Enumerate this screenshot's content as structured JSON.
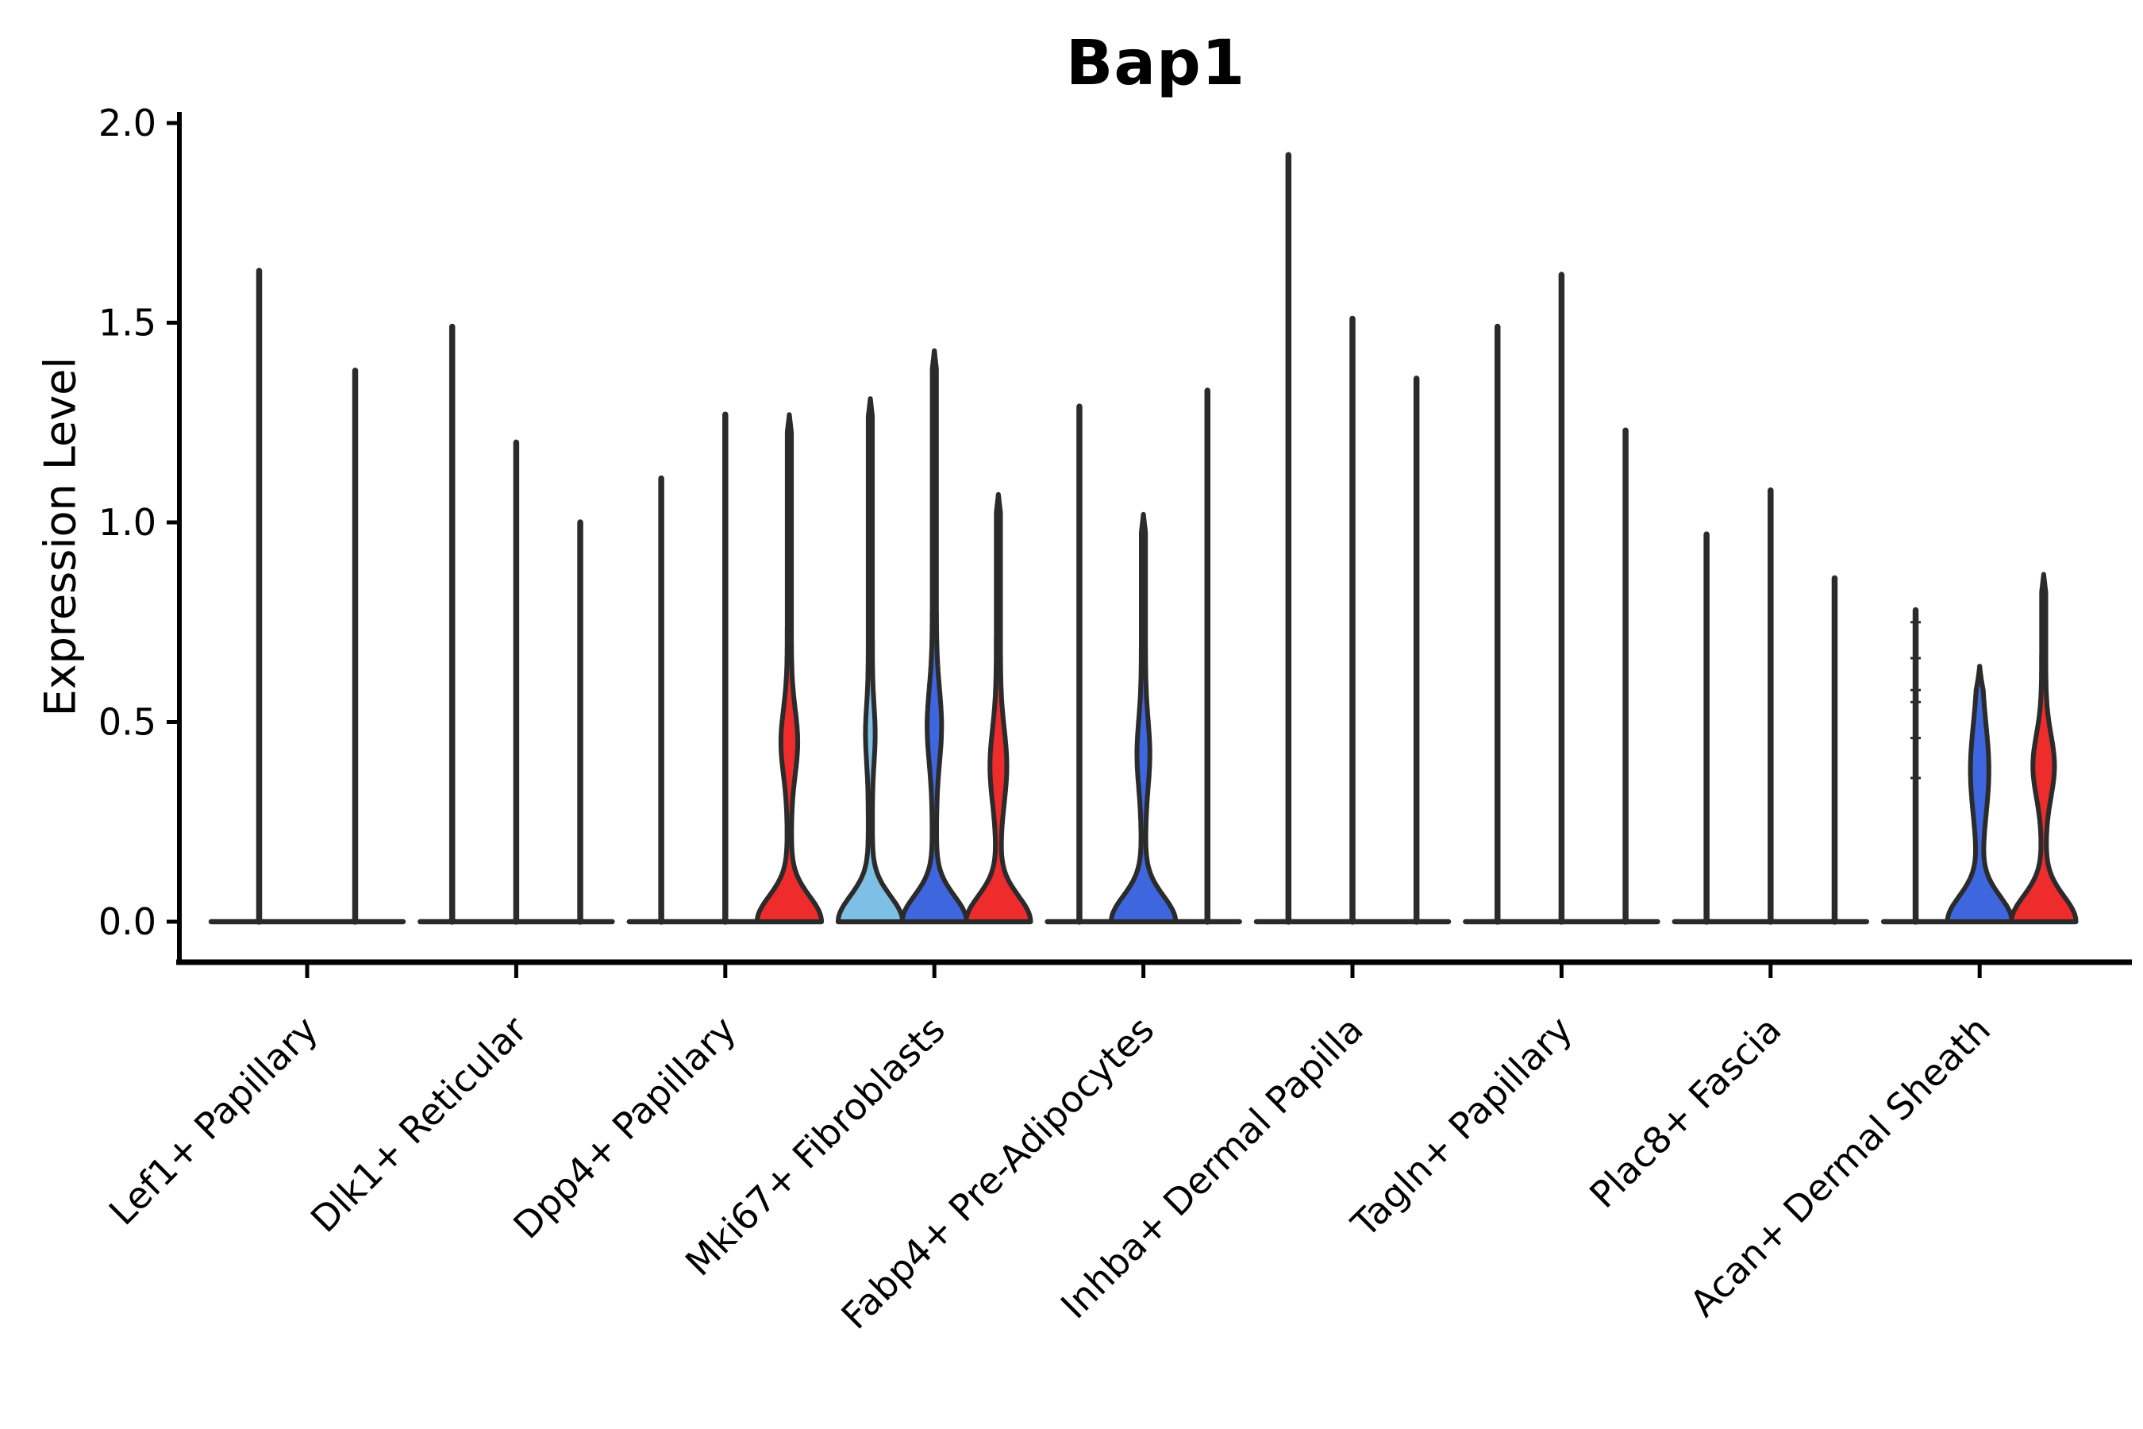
{
  "figure": {
    "title": "Bap1",
    "ylabel": "Expression Level"
  },
  "chart_data": {
    "type": "violin",
    "title": "Bap1",
    "xlabel": "",
    "ylabel": "Expression Level",
    "ylim": [
      0.0,
      2.0
    ],
    "yticks": [
      0.0,
      0.5,
      1.0,
      1.5,
      2.0
    ],
    "ytick_labels": [
      "0.0",
      "0.5",
      "1.0",
      "1.5",
      "2.0"
    ],
    "grid": false,
    "legend": "none",
    "palette": {
      "lightblue": "#7EC0E5",
      "blue": "#3E66DE",
      "red": "#EE2C2C",
      "outline": "#2B2B2B",
      "axis": "#000000"
    },
    "groups": [
      {
        "label": "Lef1+ Papillary",
        "violins": [
          {
            "fill": "none",
            "max": 1.63
          },
          {
            "fill": "none",
            "max": 1.38
          }
        ]
      },
      {
        "label": "Dlk1+ Reticular",
        "violins": [
          {
            "fill": "none",
            "max": 1.49
          },
          {
            "fill": "none",
            "max": 1.2
          },
          {
            "fill": "none",
            "max": 1.0
          }
        ]
      },
      {
        "label": "Dpp4+ Papillary",
        "violins": [
          {
            "fill": "none",
            "max": 1.11
          },
          {
            "fill": "none",
            "max": 1.27
          },
          {
            "fill": "red",
            "max": 1.27,
            "bulge": {
              "center": 0.45,
              "sigma": 0.115,
              "halfwidth": 8
            }
          }
        ]
      },
      {
        "label": "Mki67+ Fibroblasts",
        "violins": [
          {
            "fill": "lightblue",
            "max": 1.31,
            "bulge": {
              "center": 0.47,
              "sigma": 0.1,
              "halfwidth": 3.5
            }
          },
          {
            "fill": "blue",
            "max": 1.43,
            "bulge": {
              "center": 0.49,
              "sigma": 0.13,
              "halfwidth": 6.5
            }
          },
          {
            "fill": "red",
            "max": 1.07,
            "bulge": {
              "center": 0.39,
              "sigma": 0.13,
              "halfwidth": 8
            }
          }
        ]
      },
      {
        "label": "Fabp4+ Pre-Adipocytes",
        "violins": [
          {
            "fill": "none",
            "max": 1.29
          },
          {
            "fill": "blue",
            "max": 1.02,
            "bulge": {
              "center": 0.42,
              "sigma": 0.12,
              "halfwidth": 5.5
            }
          },
          {
            "fill": "none",
            "max": 1.33
          }
        ]
      },
      {
        "label": "Inhba+ Dermal Papilla",
        "violins": [
          {
            "fill": "none",
            "max": 1.92
          },
          {
            "fill": "none",
            "max": 1.51
          },
          {
            "fill": "none",
            "max": 1.36
          }
        ]
      },
      {
        "label": "Tagln+ Papillary",
        "violins": [
          {
            "fill": "none",
            "max": 1.49
          },
          {
            "fill": "none",
            "max": 1.62
          },
          {
            "fill": "none",
            "max": 1.23
          }
        ]
      },
      {
        "label": "Plac8+ Fascia",
        "violins": [
          {
            "fill": "none",
            "max": 0.97
          },
          {
            "fill": "none",
            "max": 1.08
          },
          {
            "fill": "none",
            "max": 0.86
          }
        ]
      },
      {
        "label": "Acan+ Dermal Sheath",
        "violins": [
          {
            "fill": "none",
            "max": 0.78,
            "dashes": [
              0.75,
              0.66,
              0.58,
              0.55,
              0.46,
              0.36
            ]
          },
          {
            "fill": "blue",
            "max": 0.64,
            "bulge": {
              "center": 0.38,
              "sigma": 0.16,
              "halfwidth": 9
            },
            "cap_taper": 0.06,
            "flat_top": true
          },
          {
            "fill": "red",
            "max": 0.87,
            "bulge": {
              "center": 0.39,
              "sigma": 0.11,
              "halfwidth": 11
            }
          }
        ]
      }
    ]
  }
}
